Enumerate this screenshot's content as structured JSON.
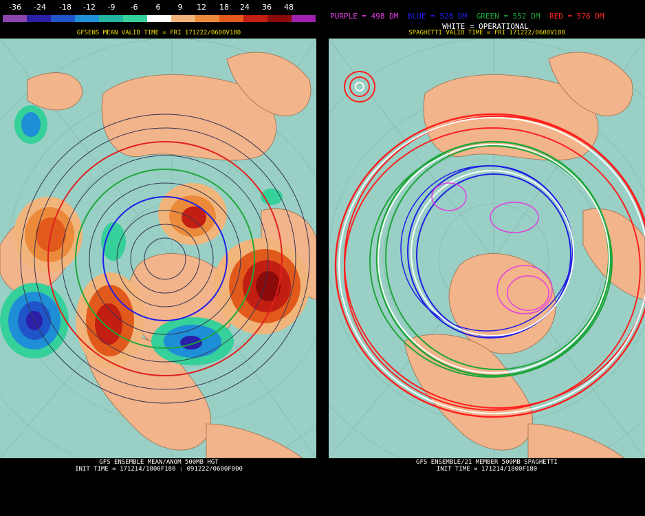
{
  "colorbar": {
    "labels": [
      "-36",
      "-24",
      "-18",
      "-12",
      "-9",
      "-6",
      "6",
      "9",
      "12",
      "18",
      "24",
      "36",
      "48"
    ],
    "colors": [
      "#8e44ad",
      "#2b1fa8",
      "#1f55c8",
      "#1e8fd6",
      "#24b4a0",
      "#36d09a",
      "#ffffff",
      "#f1b57b",
      "#ec8a3c",
      "#e25a1b",
      "#c21f12",
      "#8b0a0a",
      "#a020b0"
    ]
  },
  "legend": {
    "purple": {
      "text": "PURPLE = 498 DM",
      "color": "#e23ee0"
    },
    "blue": {
      "text": "BLUE = 528 DM",
      "color": "#1f1fe6"
    },
    "green": {
      "text": "GREEN = 552 DM",
      "color": "#1ea63a"
    },
    "red": {
      "text": "RED = 576 DM",
      "color": "#ff2020"
    },
    "white": "WHITE = OPERATIONAL"
  },
  "left_panel": {
    "title": "GFSENS MEAN VALID TIME = FRI 171222/0600V180",
    "caption_line1": "GFS ENSEMBLE MEAN/ANOM 500MB HGT",
    "caption_line2": "INIT TIME = 171214/1800F180 : 091222/0600F000"
  },
  "right_panel": {
    "title": "SPAGHETTI VALID TIME = FRI 171222/0600V180",
    "caption_line1": "GFS ENSEMBLE/21 MEMBER 500MB SPAGHETTI",
    "caption_line2": "INIT TIME = 171214/1800F180"
  },
  "colors": {
    "ocean": "#99cfc4",
    "land": "#f2b48a",
    "title_yellow": "#f5e000"
  }
}
